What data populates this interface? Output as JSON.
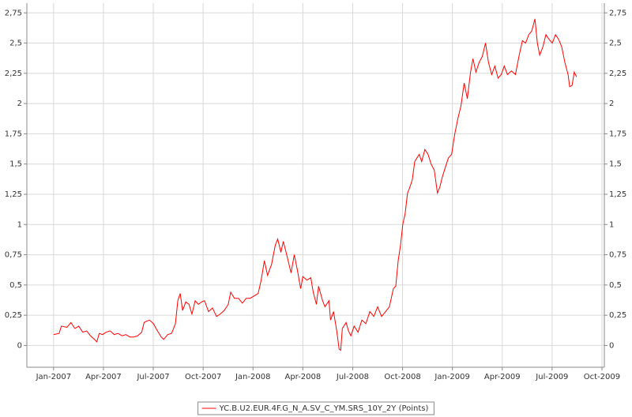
{
  "chart_data": {
    "type": "line",
    "legend": "bottom",
    "grid": true,
    "series": [
      {
        "name": "YC.B.U2.EUR.4F.G_N_A.SV_C_YM.SRS_10Y_2Y (Points)",
        "color": "#ff0000",
        "x": [
          2007.0,
          2007.028,
          2007.039,
          2007.067,
          2007.087,
          2007.107,
          2007.126,
          2007.146,
          2007.166,
          2007.185,
          2007.205,
          2007.217,
          2007.229,
          2007.245,
          2007.264,
          2007.284,
          2007.304,
          2007.323,
          2007.343,
          2007.363,
          2007.383,
          2007.402,
          2007.422,
          2007.442,
          2007.454,
          2007.465,
          2007.481,
          2007.501,
          2007.521,
          2007.54,
          2007.552,
          2007.572,
          2007.592,
          2007.611,
          2007.623,
          2007.635,
          2007.647,
          2007.663,
          2007.679,
          2007.694,
          2007.71,
          2007.726,
          2007.742,
          2007.757,
          2007.777,
          2007.797,
          2007.817,
          2007.836,
          2007.856,
          2007.876,
          2007.888,
          2007.907,
          2007.927,
          2007.947,
          2007.966,
          2007.986,
          2008.006,
          2008.026,
          2008.041,
          2008.057,
          2008.073,
          2008.093,
          2008.112,
          2008.124,
          2008.14,
          2008.152,
          2008.172,
          2008.191,
          2008.207,
          2008.223,
          2008.239,
          2008.25,
          2008.27,
          2008.29,
          2008.302,
          2008.318,
          2008.329,
          2008.349,
          2008.361,
          2008.381,
          2008.389,
          2008.404,
          2008.42,
          2008.432,
          2008.44,
          2008.448,
          2008.467,
          2008.479,
          2008.491,
          2008.507,
          2008.527,
          2008.546,
          2008.566,
          2008.586,
          2008.606,
          2008.625,
          2008.645,
          2008.665,
          2008.684,
          2008.704,
          2008.716,
          2008.728,
          2008.74,
          2008.751,
          2008.763,
          2008.775,
          2008.787,
          2008.799,
          2008.811,
          2008.822,
          2008.834,
          2008.846,
          2008.862,
          2008.878,
          2008.893,
          2008.909,
          2008.925,
          2008.937,
          2008.949,
          2008.964,
          2008.98,
          2008.996,
          2009.012,
          2009.028,
          2009.043,
          2009.059,
          2009.075,
          2009.091,
          2009.103,
          2009.118,
          2009.134,
          2009.15,
          2009.166,
          2009.181,
          2009.197,
          2009.213,
          2009.229,
          2009.245,
          2009.26,
          2009.276,
          2009.296,
          2009.316,
          2009.335,
          2009.351,
          2009.367,
          2009.383,
          2009.398,
          2009.414,
          2009.426,
          2009.438,
          2009.454,
          2009.469,
          2009.485,
          2009.501,
          2009.517,
          2009.533,
          2009.548,
          2009.564,
          2009.58,
          2009.588,
          2009.6,
          2009.611,
          2009.623
        ],
        "values": [
          0.09,
          0.1,
          0.16,
          0.15,
          0.19,
          0.14,
          0.16,
          0.11,
          0.12,
          0.08,
          0.05,
          0.03,
          0.1,
          0.09,
          0.11,
          0.12,
          0.09,
          0.1,
          0.08,
          0.09,
          0.07,
          0.07,
          0.08,
          0.11,
          0.19,
          0.2,
          0.21,
          0.18,
          0.12,
          0.07,
          0.05,
          0.09,
          0.1,
          0.18,
          0.37,
          0.43,
          0.29,
          0.36,
          0.34,
          0.26,
          0.37,
          0.34,
          0.36,
          0.37,
          0.28,
          0.31,
          0.24,
          0.26,
          0.29,
          0.34,
          0.44,
          0.39,
          0.39,
          0.35,
          0.39,
          0.39,
          0.41,
          0.43,
          0.54,
          0.7,
          0.58,
          0.67,
          0.83,
          0.88,
          0.77,
          0.86,
          0.73,
          0.6,
          0.75,
          0.62,
          0.47,
          0.57,
          0.54,
          0.56,
          0.44,
          0.34,
          0.49,
          0.37,
          0.32,
          0.37,
          0.21,
          0.28,
          0.12,
          -0.03,
          -0.04,
          0.14,
          0.19,
          0.12,
          0.08,
          0.16,
          0.11,
          0.21,
          0.18,
          0.28,
          0.24,
          0.32,
          0.24,
          0.28,
          0.32,
          0.47,
          0.49,
          0.7,
          0.83,
          1.0,
          1.09,
          1.26,
          1.31,
          1.37,
          1.52,
          1.55,
          1.58,
          1.52,
          1.62,
          1.58,
          1.5,
          1.45,
          1.26,
          1.31,
          1.39,
          1.47,
          1.55,
          1.58,
          1.75,
          1.88,
          1.98,
          2.17,
          2.04,
          2.26,
          2.37,
          2.26,
          2.34,
          2.39,
          2.5,
          2.34,
          2.24,
          2.31,
          2.21,
          2.24,
          2.31,
          2.24,
          2.27,
          2.24,
          2.4,
          2.52,
          2.5,
          2.57,
          2.6,
          2.7,
          2.5,
          2.4,
          2.47,
          2.57,
          2.53,
          2.5,
          2.57,
          2.53,
          2.47,
          2.34,
          2.24,
          2.14,
          2.15,
          2.26,
          2.22
        ]
      }
    ],
    "xlim": [
      2006.866,
      2009.762
    ],
    "xticks": [
      {
        "value": 2007.0,
        "label": "Jan-2007"
      },
      {
        "value": 2007.25,
        "label": "Apr-2007"
      },
      {
        "value": 2007.5,
        "label": "Jul-2007"
      },
      {
        "value": 2007.75,
        "label": "Oct-2007"
      },
      {
        "value": 2008.0,
        "label": "Jan-2008"
      },
      {
        "value": 2008.25,
        "label": "Apr-2008"
      },
      {
        "value": 2008.5,
        "label": "Jul-2008"
      },
      {
        "value": 2008.75,
        "label": "Oct-2008"
      },
      {
        "value": 2009.0,
        "label": "Jan-2009"
      },
      {
        "value": 2009.25,
        "label": "Apr-2009"
      },
      {
        "value": 2009.5,
        "label": "Jul-2009"
      },
      {
        "value": 2009.75,
        "label": "Oct-2009"
      }
    ],
    "ylim": [
      -0.18,
      2.83
    ],
    "yticks": [
      0,
      {
        "value": 0.25,
        "label": "0,25"
      },
      {
        "value": 0.5,
        "label": "0,5"
      },
      {
        "value": 0.75,
        "label": "0,75"
      },
      1,
      {
        "value": 1.25,
        "label": "1,25"
      },
      {
        "value": 1.5,
        "label": "1,5"
      },
      {
        "value": 1.75,
        "label": "1,75"
      },
      2,
      {
        "value": 2.25,
        "label": "2,25"
      },
      {
        "value": 2.5,
        "label": "2,5"
      },
      {
        "value": 2.75,
        "label": "2,75"
      }
    ]
  }
}
